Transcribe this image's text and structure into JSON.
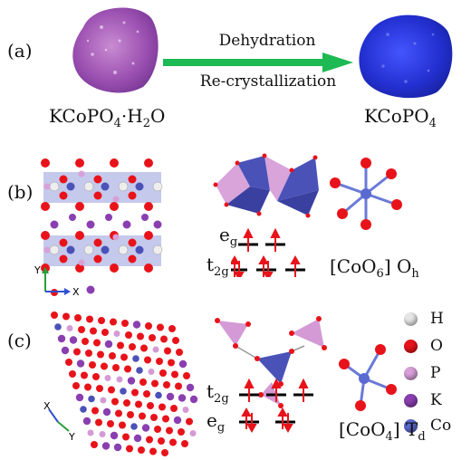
{
  "panels": {
    "a": {
      "label": "(a)",
      "reactant": {
        "main": "KCoPO",
        "sub1": "4",
        "dot": "·H",
        "sub2": "2",
        "tail": "O"
      },
      "product": {
        "main": "KCoPO",
        "sub": "4"
      },
      "process_top": "Dehydration",
      "process_bottom": "Re-crystallization"
    },
    "b": {
      "label": "(b)",
      "eg": {
        "main": "e",
        "sub": "g"
      },
      "t2g": {
        "main": "t",
        "sub": "2g"
      },
      "complex": {
        "pre": "[CoO",
        "sub": "6",
        "mid": "] O",
        "sym": "h"
      },
      "axes": {
        "y": "Y",
        "x": "X"
      }
    },
    "c": {
      "label": "(c)",
      "t2g": {
        "main": "t",
        "sub": "2g"
      },
      "eg": {
        "main": "e",
        "sub": "g"
      },
      "complex": {
        "pre": "[CoO",
        "sub": "4",
        "mid": "] T",
        "sym": "d"
      },
      "axes": {
        "x": "X",
        "y": "Y"
      }
    }
  },
  "legend": [
    {
      "symbol": "H",
      "color": "#e6e6e6"
    },
    {
      "symbol": "O",
      "color": "#e8131a"
    },
    {
      "symbol": "P",
      "color": "#d8a0d8"
    },
    {
      "symbol": "K",
      "color": "#8a3fb0"
    },
    {
      "symbol": "Co",
      "color": "#5a6ad0"
    }
  ],
  "colors": {
    "arrow": "#1db954",
    "spin": "#e8131a",
    "polyhedron_co": "#4a52b8",
    "polyhedron_p": "#d49ad6"
  }
}
